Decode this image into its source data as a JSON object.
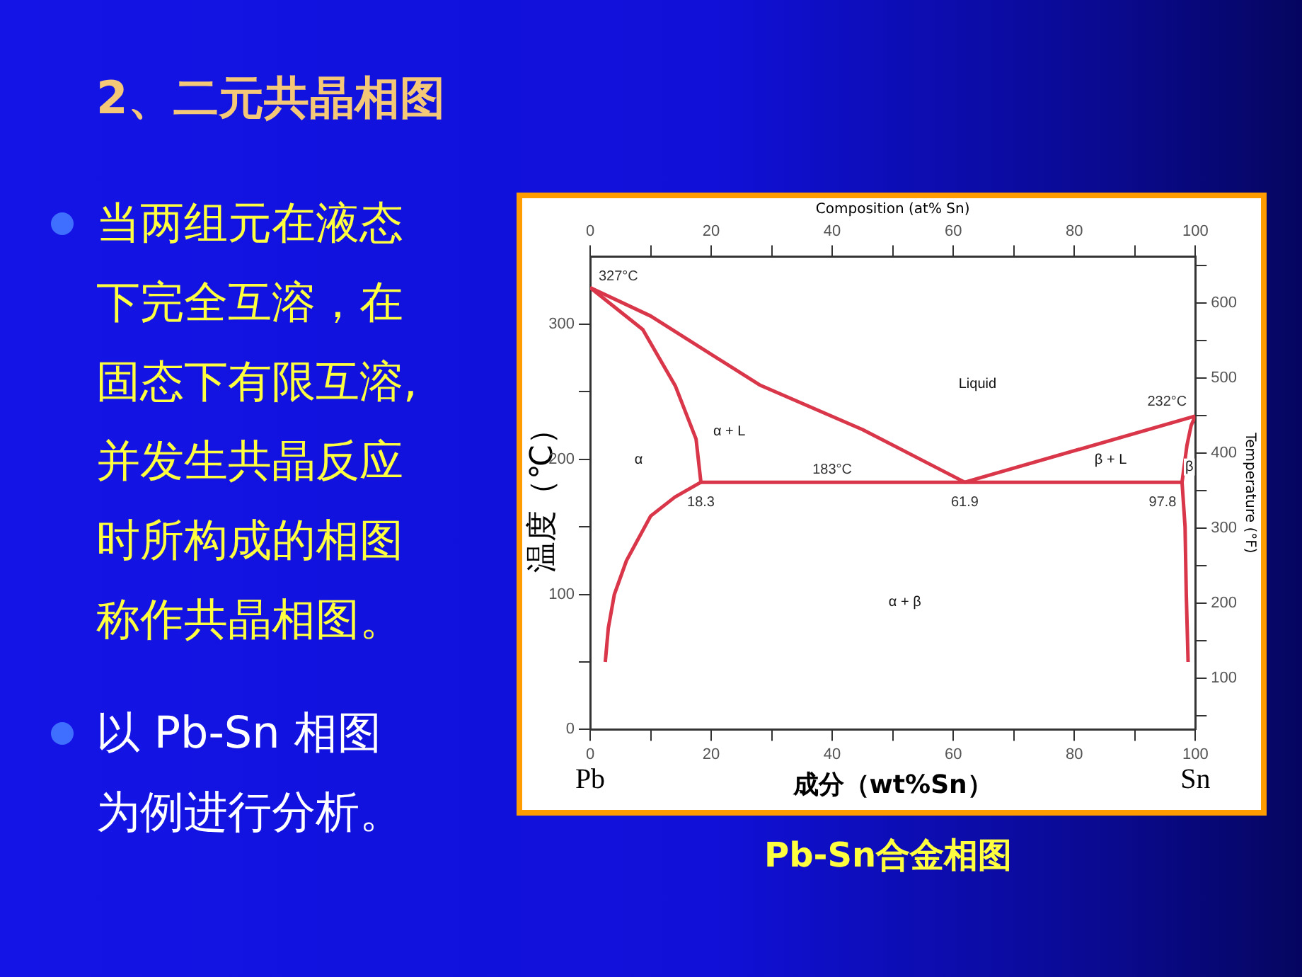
{
  "chart_data": {
    "type": "line",
    "title": "2、二元共晶相图",
    "subtitle": "Pb-Sn合金相图",
    "xlabel": "成分（wt%Sn）",
    "ylabel": "温度（℃）",
    "x2label": "Composition (at% Sn)",
    "y2label": "Temperature (°F)",
    "xlim": [
      0,
      100
    ],
    "xticks": [
      0,
      {
        "value": 10,
        "label": null
      },
      20,
      {
        "value": 30,
        "label": null
      },
      40,
      {
        "value": 50,
        "label": null
      },
      60,
      {
        "value": 70,
        "label": null
      },
      80,
      {
        "value": 90,
        "label": null
      },
      100
    ],
    "x2lim": [
      0,
      100
    ],
    "x2ticks": [
      0,
      {
        "value": 10,
        "label": null
      },
      20,
      {
        "value": 30,
        "label": null
      },
      40,
      {
        "value": 50,
        "label": null
      },
      60,
      {
        "value": 70,
        "label": null
      },
      80,
      {
        "value": 90,
        "label": null
      },
      100
    ],
    "ylim": [
      0,
      350
    ],
    "yticks": [
      0,
      {
        "value": 50,
        "label": null
      },
      100,
      {
        "value": 150,
        "label": null
      },
      200,
      {
        "value": 250,
        "label": null
      },
      300
    ],
    "y2lim": [
      32,
      662
    ],
    "y2ticks": [
      {
        "value": 50,
        "label": null
      },
      100,
      {
        "value": 150,
        "label": null
      },
      200,
      {
        "value": 250,
        "label": null
      },
      300,
      {
        "value": 350,
        "label": null
      },
      400,
      {
        "value": 450,
        "label": null
      },
      500,
      {
        "value": 550,
        "label": null
      },
      600,
      {
        "value": 650,
        "label": null
      }
    ],
    "grid": false,
    "legend": false,
    "marker": "none",
    "line_style": "solid",
    "series": [
      {
        "color": "#d9364a",
        "x": [
          0,
          10,
          28,
          45,
          61.9
        ],
        "values": [
          327,
          306,
          255,
          222,
          183
        ]
      },
      {
        "color": "#d9364a",
        "x": [
          61.9,
          100
        ],
        "values": [
          183,
          232
        ]
      },
      {
        "color": "#d9364a",
        "x": [
          0,
          8.7,
          14.1,
          17.5,
          18.3,
          14,
          10,
          6,
          4,
          3,
          2.5
        ],
        "values": [
          327,
          296,
          254,
          215,
          183,
          172,
          158,
          125,
          100,
          75,
          50
        ]
      },
      {
        "color": "#d9364a",
        "x": [
          18.3,
          97.8
        ],
        "values": [
          183,
          183
        ]
      },
      {
        "color": "#d9364a",
        "x": [
          100,
          99.3,
          98.6,
          97.8,
          98.3,
          98.5,
          98.8
        ],
        "values": [
          232,
          225,
          210,
          183,
          150,
          100,
          50
        ]
      }
    ],
    "annotations": [
      "当两组元在液态下完全互溶，在固态下有限互溶,并发生共晶反应时所构成的相图称作共晶相图。",
      "以 Pb-Sn 相图为例进行分析。",
      {
        "text": "327°C",
        "x": 0,
        "y": 327
      },
      {
        "text": "232°C",
        "x": 100,
        "y": 232
      },
      {
        "text": "183°C",
        "x": 40,
        "y": 183
      },
      {
        "text": "18.3",
        "x": 18.3,
        "y": 183
      },
      {
        "text": "61.9",
        "x": 61.9,
        "y": 183
      },
      {
        "text": "97.8",
        "x": 97.8,
        "y": 183
      },
      "Liquid",
      "α + L",
      "α",
      "β + L",
      "β",
      "α + β",
      "Pb",
      "Sn"
    ]
  }
}
